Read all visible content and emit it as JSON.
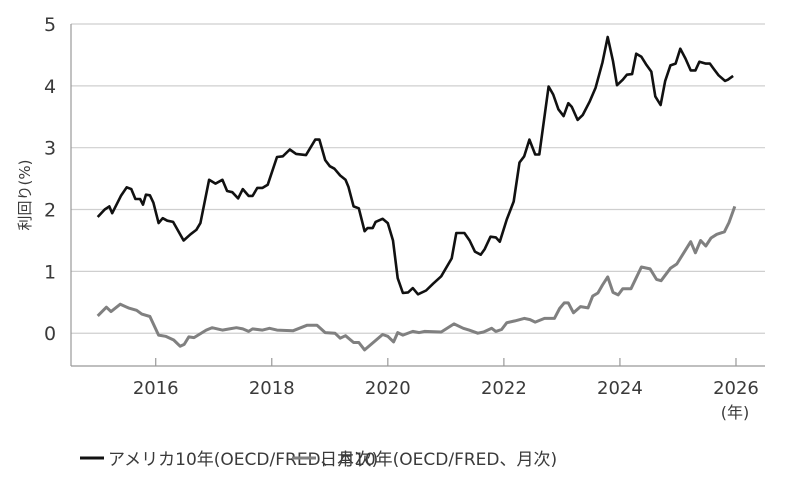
{
  "chart_data": {
    "type": "line",
    "title": "",
    "xlabel": "",
    "x_unit_label": "(年)",
    "ylabel": "利回り(%)",
    "ylim": [
      -0.53,
      5
    ],
    "xlim": [
      2014.54,
      2026.5
    ],
    "yticks": [
      0,
      1,
      2,
      3,
      4,
      5
    ],
    "ytick_labels": [
      "0",
      "1",
      "2",
      "3",
      "4",
      "5"
    ],
    "xticks": [
      2016,
      2018,
      2020,
      2022,
      2024,
      2026
    ],
    "xtick_labels": [
      "2016",
      "2018",
      "2020",
      "2022",
      "2024",
      "2026"
    ],
    "grid": "horizontal",
    "legend_placement": "bottom",
    "series": [
      {
        "name": "アメリカ10年(OECD/FRED、月次)",
        "color": "#111111",
        "points": [
          [
            2015.0,
            1.88
          ],
          [
            2015.12,
            2.0
          ],
          [
            2015.2,
            2.05
          ],
          [
            2015.25,
            1.94
          ],
          [
            2015.4,
            2.22
          ],
          [
            2015.5,
            2.36
          ],
          [
            2015.58,
            2.33
          ],
          [
            2015.65,
            2.17
          ],
          [
            2015.73,
            2.17
          ],
          [
            2015.78,
            2.08
          ],
          [
            2015.83,
            2.24
          ],
          [
            2015.9,
            2.23
          ],
          [
            2015.96,
            2.11
          ],
          [
            2016.05,
            1.78
          ],
          [
            2016.12,
            1.86
          ],
          [
            2016.2,
            1.82
          ],
          [
            2016.3,
            1.8
          ],
          [
            2016.48,
            1.5
          ],
          [
            2016.6,
            1.6
          ],
          [
            2016.7,
            1.67
          ],
          [
            2016.77,
            1.78
          ],
          [
            2016.92,
            2.48
          ],
          [
            2017.03,
            2.42
          ],
          [
            2017.15,
            2.48
          ],
          [
            2017.23,
            2.3
          ],
          [
            2017.32,
            2.28
          ],
          [
            2017.42,
            2.18
          ],
          [
            2017.5,
            2.33
          ],
          [
            2017.6,
            2.22
          ],
          [
            2017.67,
            2.22
          ],
          [
            2017.75,
            2.35
          ],
          [
            2017.84,
            2.35
          ],
          [
            2017.93,
            2.4
          ],
          [
            2018.09,
            2.85
          ],
          [
            2018.19,
            2.86
          ],
          [
            2018.31,
            2.97
          ],
          [
            2018.42,
            2.9
          ],
          [
            2018.59,
            2.88
          ],
          [
            2018.75,
            3.13
          ],
          [
            2018.82,
            3.13
          ],
          [
            2018.92,
            2.8
          ],
          [
            2019.0,
            2.7
          ],
          [
            2019.08,
            2.66
          ],
          [
            2019.18,
            2.55
          ],
          [
            2019.27,
            2.48
          ],
          [
            2019.32,
            2.37
          ],
          [
            2019.41,
            2.05
          ],
          [
            2019.5,
            2.02
          ],
          [
            2019.6,
            1.65
          ],
          [
            2019.65,
            1.7
          ],
          [
            2019.74,
            1.7
          ],
          [
            2019.79,
            1.8
          ],
          [
            2019.91,
            1.85
          ],
          [
            2020.0,
            1.78
          ],
          [
            2020.09,
            1.5
          ],
          [
            2020.17,
            0.89
          ],
          [
            2020.26,
            0.65
          ],
          [
            2020.35,
            0.66
          ],
          [
            2020.43,
            0.73
          ],
          [
            2020.52,
            0.63
          ],
          [
            2020.66,
            0.69
          ],
          [
            2020.78,
            0.8
          ],
          [
            2020.92,
            0.92
          ],
          [
            2021.1,
            1.21
          ],
          [
            2021.18,
            1.62
          ],
          [
            2021.32,
            1.62
          ],
          [
            2021.41,
            1.5
          ],
          [
            2021.5,
            1.32
          ],
          [
            2021.6,
            1.27
          ],
          [
            2021.67,
            1.36
          ],
          [
            2021.77,
            1.56
          ],
          [
            2021.86,
            1.55
          ],
          [
            2021.93,
            1.48
          ],
          [
            2022.05,
            1.84
          ],
          [
            2022.17,
            2.13
          ],
          [
            2022.27,
            2.76
          ],
          [
            2022.35,
            2.86
          ],
          [
            2022.44,
            3.13
          ],
          [
            2022.54,
            2.89
          ],
          [
            2022.61,
            2.89
          ],
          [
            2022.77,
            3.99
          ],
          [
            2022.85,
            3.86
          ],
          [
            2022.94,
            3.62
          ],
          [
            2023.03,
            3.51
          ],
          [
            2023.11,
            3.72
          ],
          [
            2023.17,
            3.66
          ],
          [
            2023.27,
            3.45
          ],
          [
            2023.36,
            3.53
          ],
          [
            2023.48,
            3.75
          ],
          [
            2023.58,
            3.97
          ],
          [
            2023.7,
            4.38
          ],
          [
            2023.79,
            4.79
          ],
          [
            2023.88,
            4.4
          ],
          [
            2023.95,
            4.01
          ],
          [
            2024.05,
            4.1
          ],
          [
            2024.12,
            4.18
          ],
          [
            2024.21,
            4.19
          ],
          [
            2024.28,
            4.52
          ],
          [
            2024.37,
            4.47
          ],
          [
            2024.45,
            4.35
          ],
          [
            2024.54,
            4.23
          ],
          [
            2024.61,
            3.83
          ],
          [
            2024.7,
            3.69
          ],
          [
            2024.78,
            4.08
          ],
          [
            2024.87,
            4.33
          ],
          [
            2024.96,
            4.36
          ],
          [
            2025.04,
            4.6
          ],
          [
            2025.13,
            4.44
          ],
          [
            2025.22,
            4.25
          ],
          [
            2025.3,
            4.25
          ],
          [
            2025.37,
            4.39
          ],
          [
            2025.48,
            4.36
          ],
          [
            2025.55,
            4.36
          ],
          [
            2025.62,
            4.27
          ],
          [
            2025.7,
            4.17
          ],
          [
            2025.81,
            4.08
          ],
          [
            2025.86,
            4.1
          ],
          [
            2025.95,
            4.16
          ]
        ]
      },
      {
        "name": "日本10年(OECD/FRED、月次)",
        "color": "#808080",
        "points": [
          [
            2015.0,
            0.28
          ],
          [
            2015.15,
            0.42
          ],
          [
            2015.23,
            0.35
          ],
          [
            2015.39,
            0.47
          ],
          [
            2015.53,
            0.41
          ],
          [
            2015.67,
            0.37
          ],
          [
            2015.76,
            0.31
          ],
          [
            2015.9,
            0.27
          ],
          [
            2016.05,
            -0.03
          ],
          [
            2016.17,
            -0.05
          ],
          [
            2016.31,
            -0.11
          ],
          [
            2016.42,
            -0.21
          ],
          [
            2016.49,
            -0.18
          ],
          [
            2016.57,
            -0.06
          ],
          [
            2016.66,
            -0.07
          ],
          [
            2016.87,
            0.05
          ],
          [
            2016.97,
            0.09
          ],
          [
            2017.15,
            0.05
          ],
          [
            2017.27,
            0.07
          ],
          [
            2017.39,
            0.09
          ],
          [
            2017.5,
            0.07
          ],
          [
            2017.6,
            0.03
          ],
          [
            2017.67,
            0.07
          ],
          [
            2017.84,
            0.05
          ],
          [
            2017.96,
            0.08
          ],
          [
            2018.09,
            0.05
          ],
          [
            2018.37,
            0.04
          ],
          [
            2018.61,
            0.13
          ],
          [
            2018.78,
            0.13
          ],
          [
            2018.92,
            0.01
          ],
          [
            2019.09,
            0.0
          ],
          [
            2019.18,
            -0.08
          ],
          [
            2019.27,
            -0.04
          ],
          [
            2019.41,
            -0.15
          ],
          [
            2019.5,
            -0.15
          ],
          [
            2019.6,
            -0.27
          ],
          [
            2019.91,
            -0.02
          ],
          [
            2020.0,
            -0.05
          ],
          [
            2020.1,
            -0.14
          ],
          [
            2020.17,
            0.01
          ],
          [
            2020.26,
            -0.03
          ],
          [
            2020.43,
            0.03
          ],
          [
            2020.54,
            0.01
          ],
          [
            2020.63,
            0.03
          ],
          [
            2020.92,
            0.02
          ],
          [
            2021.14,
            0.15
          ],
          [
            2021.3,
            0.08
          ],
          [
            2021.4,
            0.05
          ],
          [
            2021.55,
            0.0
          ],
          [
            2021.65,
            0.02
          ],
          [
            2021.79,
            0.08
          ],
          [
            2021.86,
            0.03
          ],
          [
            2021.96,
            0.06
          ],
          [
            2022.05,
            0.17
          ],
          [
            2022.19,
            0.2
          ],
          [
            2022.35,
            0.24
          ],
          [
            2022.45,
            0.22
          ],
          [
            2022.54,
            0.18
          ],
          [
            2022.7,
            0.24
          ],
          [
            2022.87,
            0.24
          ],
          [
            2022.96,
            0.4
          ],
          [
            2023.04,
            0.49
          ],
          [
            2023.11,
            0.49
          ],
          [
            2023.2,
            0.33
          ],
          [
            2023.32,
            0.43
          ],
          [
            2023.45,
            0.41
          ],
          [
            2023.53,
            0.6
          ],
          [
            2023.62,
            0.65
          ],
          [
            2023.7,
            0.78
          ],
          [
            2023.79,
            0.91
          ],
          [
            2023.88,
            0.66
          ],
          [
            2023.97,
            0.62
          ],
          [
            2024.05,
            0.72
          ],
          [
            2024.19,
            0.72
          ],
          [
            2024.37,
            1.07
          ],
          [
            2024.52,
            1.04
          ],
          [
            2024.63,
            0.87
          ],
          [
            2024.71,
            0.85
          ],
          [
            2024.87,
            1.05
          ],
          [
            2024.98,
            1.12
          ],
          [
            2025.22,
            1.48
          ],
          [
            2025.3,
            1.3
          ],
          [
            2025.39,
            1.5
          ],
          [
            2025.48,
            1.41
          ],
          [
            2025.57,
            1.54
          ],
          [
            2025.67,
            1.6
          ],
          [
            2025.8,
            1.64
          ],
          [
            2025.88,
            1.79
          ],
          [
            2025.98,
            2.05
          ]
        ]
      }
    ]
  }
}
